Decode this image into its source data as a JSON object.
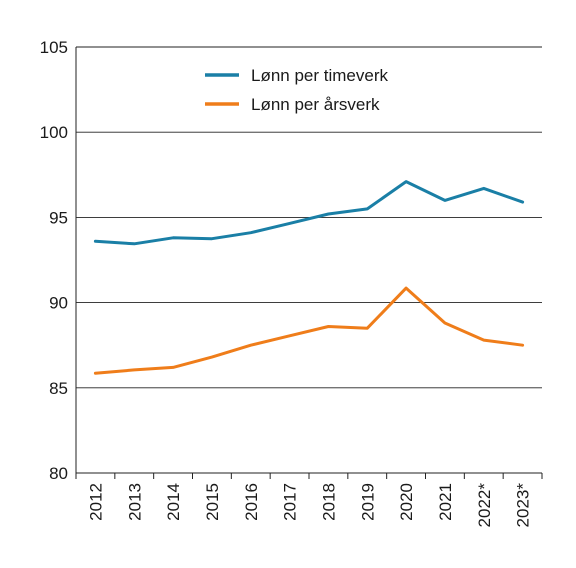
{
  "chart_data": {
    "type": "line",
    "title": "",
    "xlabel": "",
    "ylabel": "",
    "categories": [
      "2012",
      "2013",
      "2014",
      "2015",
      "2016",
      "2017",
      "2018",
      "2019",
      "2020",
      "2021",
      "2022*",
      "2023*"
    ],
    "ylim": [
      80,
      105
    ],
    "yticks": [
      80,
      85,
      90,
      95,
      100,
      105
    ],
    "grid": "horizontal",
    "legend_position": "top-center",
    "series": [
      {
        "name": "Lønn per timeverk",
        "color": "#1a7fa6",
        "values": [
          93.6,
          93.45,
          93.8,
          93.75,
          94.1,
          94.65,
          95.2,
          95.5,
          97.1,
          96.0,
          96.7,
          95.9
        ]
      },
      {
        "name": "Lønn per årsverk",
        "color": "#ef7d1a",
        "values": [
          85.85,
          86.05,
          86.2,
          86.8,
          87.5,
          88.05,
          88.6,
          88.5,
          90.85,
          88.8,
          87.8,
          87.5
        ]
      }
    ]
  }
}
